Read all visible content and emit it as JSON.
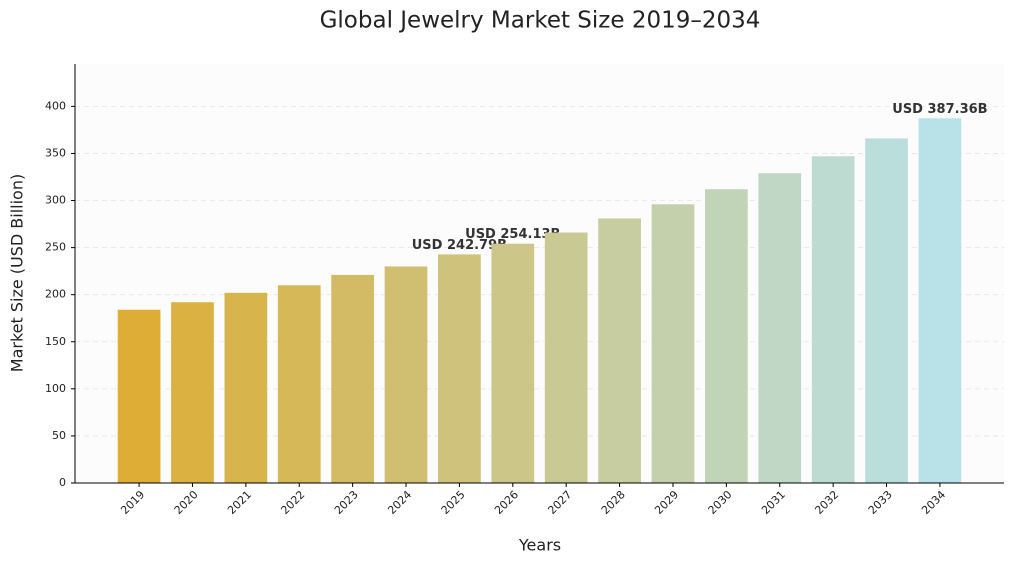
{
  "chart_data": {
    "type": "bar",
    "title": "Global Jewelry Market Size 2019–2034",
    "x_label": "Years",
    "y_label": "Market Size (USD Billion)",
    "categories": [
      "2019",
      "2020",
      "2021",
      "2022",
      "2023",
      "2024",
      "2025",
      "2026",
      "2027",
      "2028",
      "2029",
      "2030",
      "2031",
      "2032",
      "2033",
      "2034"
    ],
    "values": [
      184,
      192,
      202,
      210,
      221,
      230,
      242.79,
      254.13,
      266,
      281,
      296,
      312,
      329,
      347,
      366,
      387.36
    ],
    "value_labels": [
      null,
      null,
      null,
      null,
      null,
      null,
      "USD 242.79B",
      "USD 254.13B",
      null,
      null,
      null,
      null,
      null,
      null,
      null,
      "USD 387.36B"
    ],
    "colors": [
      "#ddad35",
      "#dbb141",
      "#d8b44d",
      "#d6b859",
      "#d3bb65",
      "#d1bf71",
      "#cec27d",
      "#ccc689",
      "#c9c994",
      "#c7cda0",
      "#c4d0ac",
      "#c2d4b8",
      "#bfd7c4",
      "#bddbd0",
      "#badedc",
      "#b8e2e8"
    ],
    "ylim": [
      0,
      445
    ],
    "yticks": [
      0,
      50,
      100,
      150,
      200,
      250,
      300,
      350,
      400
    ],
    "grid": true
  }
}
